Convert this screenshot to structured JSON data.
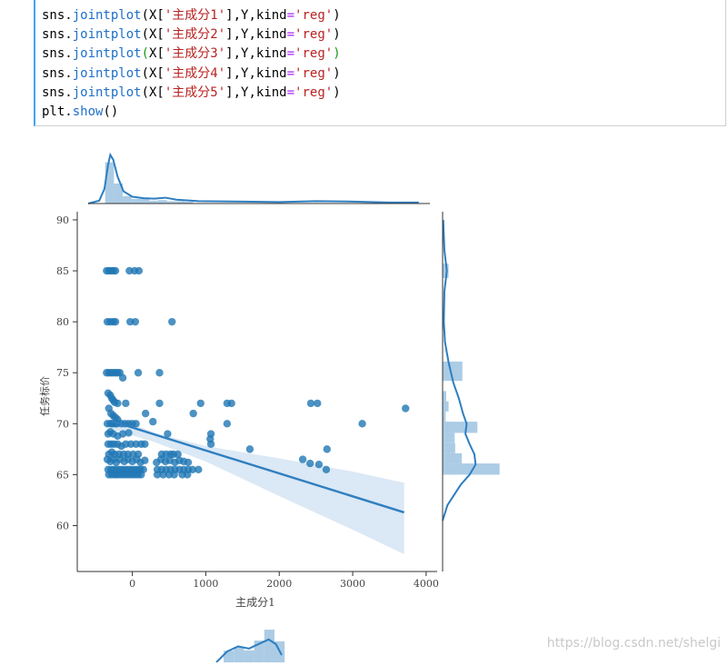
{
  "code": {
    "lines": [
      [
        {
          "t": "sns.",
          "c": ""
        },
        {
          "t": "jointplot",
          "c": "fn"
        },
        {
          "t": "(X[",
          "c": ""
        },
        {
          "t": "'主成分1'",
          "c": "str"
        },
        {
          "t": "],Y,kind",
          "c": ""
        },
        {
          "t": "=",
          "c": "kw"
        },
        {
          "t": "'reg'",
          "c": "str"
        },
        {
          "t": ")",
          "c": ""
        }
      ],
      [
        {
          "t": "sns.",
          "c": ""
        },
        {
          "t": "jointplot",
          "c": "fn"
        },
        {
          "t": "(X[",
          "c": ""
        },
        {
          "t": "'主成分2'",
          "c": "str"
        },
        {
          "t": "],Y,kind",
          "c": ""
        },
        {
          "t": "=",
          "c": "kw"
        },
        {
          "t": "'reg'",
          "c": "str"
        },
        {
          "t": ")",
          "c": ""
        }
      ],
      [
        {
          "t": "sns.",
          "c": ""
        },
        {
          "t": "jointplot",
          "c": "fn"
        },
        {
          "t": "(",
          "c": "par-g"
        },
        {
          "t": "X[",
          "c": ""
        },
        {
          "t": "'主成分3'",
          "c": "str"
        },
        {
          "t": "],Y,kind",
          "c": ""
        },
        {
          "t": "=",
          "c": "kw"
        },
        {
          "t": "'reg'",
          "c": "str"
        },
        {
          "t": ")",
          "c": "par-g"
        }
      ],
      [
        {
          "t": "sns.",
          "c": ""
        },
        {
          "t": "jointplot",
          "c": "fn"
        },
        {
          "t": "(X[",
          "c": ""
        },
        {
          "t": "'主成分4'",
          "c": "str"
        },
        {
          "t": "],Y,kind",
          "c": ""
        },
        {
          "t": "=",
          "c": "kw"
        },
        {
          "t": "'reg'",
          "c": "str"
        },
        {
          "t": ")",
          "c": ""
        }
      ],
      [
        {
          "t": "sns.",
          "c": ""
        },
        {
          "t": "jointplot",
          "c": "fn"
        },
        {
          "t": "(X[",
          "c": ""
        },
        {
          "t": "'主成分5'",
          "c": "str"
        },
        {
          "t": "],Y,kind",
          "c": ""
        },
        {
          "t": "=",
          "c": "kw"
        },
        {
          "t": "'reg'",
          "c": "str"
        },
        {
          "t": ")",
          "c": ""
        }
      ],
      [
        {
          "t": "plt.",
          "c": ""
        },
        {
          "t": "show",
          "c": "fn"
        },
        {
          "t": "()",
          "c": ""
        }
      ]
    ]
  },
  "colors": {
    "cell_accent": "#42a5f5",
    "points": "#1f77b4",
    "reg_line": "#2f7fc0",
    "ci_band": "#c7dbef",
    "hist": "#9ec3e0",
    "kde": "#2e7ec0"
  },
  "chart_data": {
    "type": "scatter",
    "xlabel": "主成分1",
    "ylabel": "任务标价",
    "xlim": [
      -750,
      4150
    ],
    "ylim": [
      55.5,
      90.8
    ],
    "xticks": [
      "0",
      "1000",
      "2000",
      "3000",
      "4000"
    ],
    "yticks": [
      "60",
      "65",
      "70",
      "75",
      "80",
      "85",
      "90"
    ],
    "regression": {
      "x0": -300,
      "y0": 70.3,
      "x1": 3700,
      "y1": 61.3
    },
    "ci": {
      "upper": [
        [
          -300,
          70.9
        ],
        [
          300,
          69.1
        ],
        [
          1000,
          67.8
        ],
        [
          2000,
          66.6
        ],
        [
          3000,
          65.3
        ],
        [
          3700,
          64.2
        ]
      ],
      "lower": [
        [
          3700,
          57.2
        ],
        [
          3000,
          59.6
        ],
        [
          2000,
          62.9
        ],
        [
          1000,
          66.3
        ],
        [
          300,
          68.2
        ],
        [
          -300,
          69.5
        ]
      ]
    },
    "points": [
      [
        -350,
        85
      ],
      [
        -320,
        85
      ],
      [
        -290,
        85
      ],
      [
        -260,
        85
      ],
      [
        -230,
        85
      ],
      [
        -40,
        85
      ],
      [
        30,
        85
      ],
      [
        90,
        85
      ],
      [
        -340,
        80
      ],
      [
        -300,
        80
      ],
      [
        -260,
        80
      ],
      [
        -230,
        80
      ],
      [
        -30,
        80
      ],
      [
        40,
        80
      ],
      [
        540,
        80
      ],
      [
        -350,
        75
      ],
      [
        -320,
        75
      ],
      [
        -290,
        75
      ],
      [
        -260,
        75
      ],
      [
        -230,
        75
      ],
      [
        -200,
        75
      ],
      [
        -170,
        75
      ],
      [
        80,
        75
      ],
      [
        370,
        75
      ],
      [
        -130,
        74.5
      ],
      [
        -330,
        73
      ],
      [
        -300,
        72.8
      ],
      [
        -280,
        72.5
      ],
      [
        -260,
        72.3
      ],
      [
        -240,
        72.1
      ],
      [
        -200,
        72
      ],
      [
        -90,
        72
      ],
      [
        370,
        72
      ],
      [
        930,
        72
      ],
      [
        1290,
        72
      ],
      [
        1350,
        72
      ],
      [
        2430,
        72
      ],
      [
        2520,
        72
      ],
      [
        3720,
        71.5
      ],
      [
        -320,
        71.5
      ],
      [
        -290,
        71
      ],
      [
        -260,
        70.8
      ],
      [
        -230,
        70.6
      ],
      [
        -200,
        70.4
      ],
      [
        830,
        71
      ],
      [
        180,
        71
      ],
      [
        280,
        70.2
      ],
      [
        -340,
        70
      ],
      [
        -300,
        70
      ],
      [
        -270,
        70
      ],
      [
        -240,
        70
      ],
      [
        -210,
        70
      ],
      [
        -150,
        70
      ],
      [
        -100,
        70
      ],
      [
        -50,
        70
      ],
      [
        0,
        70
      ],
      [
        50,
        70
      ],
      [
        1290,
        70
      ],
      [
        3130,
        70
      ],
      [
        -330,
        69
      ],
      [
        -300,
        69.2
      ],
      [
        -260,
        69
      ],
      [
        -200,
        68.8
      ],
      [
        -130,
        69
      ],
      [
        -50,
        69.1
      ],
      [
        480,
        69
      ],
      [
        1070,
        69
      ],
      [
        1060,
        68.5
      ],
      [
        -330,
        68
      ],
      [
        -290,
        68
      ],
      [
        -250,
        68
      ],
      [
        -200,
        68
      ],
      [
        -150,
        67.8
      ],
      [
        -90,
        68
      ],
      [
        -20,
        68
      ],
      [
        50,
        68
      ],
      [
        120,
        68
      ],
      [
        170,
        68
      ],
      [
        1070,
        68
      ],
      [
        -320,
        67
      ],
      [
        -280,
        67.2
      ],
      [
        -240,
        67
      ],
      [
        -180,
        67
      ],
      [
        -120,
        67
      ],
      [
        -60,
        67
      ],
      [
        10,
        67
      ],
      [
        80,
        67
      ],
      [
        400,
        67
      ],
      [
        460,
        67
      ],
      [
        520,
        67
      ],
      [
        560,
        67
      ],
      [
        620,
        67
      ],
      [
        1600,
        67.5
      ],
      [
        2650,
        67.5
      ],
      [
        -340,
        66.5
      ],
      [
        -300,
        66.3
      ],
      [
        -260,
        66.5
      ],
      [
        -220,
        66.2
      ],
      [
        -170,
        66.5
      ],
      [
        -110,
        66.3
      ],
      [
        -60,
        66.5
      ],
      [
        0,
        66.3
      ],
      [
        60,
        66.5
      ],
      [
        110,
        66.2
      ],
      [
        170,
        66.4
      ],
      [
        330,
        66.2
      ],
      [
        390,
        66.5
      ],
      [
        450,
        66.3
      ],
      [
        510,
        66.4
      ],
      [
        580,
        66.2
      ],
      [
        640,
        66.4
      ],
      [
        700,
        66.3
      ],
      [
        760,
        66.2
      ],
      [
        2320,
        66.5
      ],
      [
        2420,
        66.1
      ],
      [
        2540,
        66
      ],
      [
        -330,
        65.5
      ],
      [
        -290,
        65.5
      ],
      [
        -250,
        65.5
      ],
      [
        -210,
        65.5
      ],
      [
        -170,
        65.5
      ],
      [
        -130,
        65.5
      ],
      [
        -90,
        65.5
      ],
      [
        -50,
        65.5
      ],
      [
        -10,
        65.5
      ],
      [
        30,
        65.5
      ],
      [
        70,
        65.5
      ],
      [
        110,
        65.5
      ],
      [
        150,
        65.5
      ],
      [
        340,
        65.5
      ],
      [
        400,
        65.5
      ],
      [
        460,
        65.5
      ],
      [
        520,
        65.5
      ],
      [
        580,
        65.5
      ],
      [
        640,
        65.5
      ],
      [
        700,
        65.5
      ],
      [
        760,
        65.5
      ],
      [
        820,
        65.5
      ],
      [
        900,
        65.5
      ],
      [
        2640,
        65.5
      ],
      [
        -320,
        65
      ],
      [
        -280,
        65
      ],
      [
        -240,
        65
      ],
      [
        -200,
        65
      ],
      [
        -160,
        65
      ],
      [
        -120,
        65
      ],
      [
        -80,
        65
      ],
      [
        -40,
        65
      ],
      [
        0,
        65
      ],
      [
        40,
        65
      ],
      [
        80,
        65
      ],
      [
        120,
        65
      ],
      [
        340,
        65
      ],
      [
        420,
        65
      ],
      [
        500,
        65
      ],
      [
        570,
        65
      ],
      [
        680,
        65
      ],
      [
        750,
        65
      ]
    ]
  },
  "marginals": {
    "top_hist": [
      [
        -370,
        -250,
        0.72
      ],
      [
        -250,
        -130,
        0.35
      ],
      [
        -130,
        -10,
        0.13
      ],
      [
        -10,
        110,
        0.08
      ],
      [
        110,
        230,
        0.08
      ],
      [
        230,
        350,
        0.05
      ],
      [
        350,
        470,
        0.06
      ],
      [
        470,
        590,
        0.04
      ],
      [
        590,
        710,
        0.04
      ],
      [
        710,
        830,
        0.03
      ]
    ],
    "top_kde": [
      [
        -600,
        0
      ],
      [
        -450,
        0.06
      ],
      [
        -380,
        0.3
      ],
      [
        -330,
        0.8
      ],
      [
        -300,
        1.0
      ],
      [
        -260,
        0.9
      ],
      [
        -200,
        0.55
      ],
      [
        -120,
        0.25
      ],
      [
        0,
        0.14
      ],
      [
        150,
        0.11
      ],
      [
        300,
        0.1
      ],
      [
        450,
        0.12
      ],
      [
        600,
        0.08
      ],
      [
        900,
        0.05
      ],
      [
        1500,
        0.04
      ],
      [
        2000,
        0.03
      ],
      [
        2500,
        0.05
      ],
      [
        3000,
        0.04
      ],
      [
        3500,
        0.02
      ],
      [
        3900,
        0.02
      ]
    ],
    "right_hist": [
      [
        84.3,
        85.7,
        0.1
      ],
      [
        79.3,
        80.7,
        0.02
      ],
      [
        74.2,
        76.1,
        0.33
      ],
      [
        72.2,
        73.2,
        0.06
      ],
      [
        71.2,
        72.2,
        0.1
      ],
      [
        70.2,
        71.2,
        0.05
      ],
      [
        69.1,
        70.2,
        0.58
      ],
      [
        68.1,
        69.1,
        0.2
      ],
      [
        67.1,
        68.1,
        0.21
      ],
      [
        66.1,
        67.1,
        0.32
      ],
      [
        65.0,
        66.1,
        0.95
      ]
    ],
    "right_kde": [
      [
        90,
        0.01
      ],
      [
        87,
        0.03
      ],
      [
        85,
        0.07
      ],
      [
        83,
        0.03
      ],
      [
        80,
        0.02
      ],
      [
        78,
        0.04
      ],
      [
        76,
        0.1
      ],
      [
        74,
        0.18
      ],
      [
        72.5,
        0.27
      ],
      [
        71,
        0.34
      ],
      [
        70,
        0.4
      ],
      [
        69,
        0.38
      ],
      [
        68,
        0.45
      ],
      [
        67,
        0.53
      ],
      [
        66,
        0.55
      ],
      [
        65,
        0.45
      ],
      [
        64,
        0.3
      ],
      [
        62,
        0.08
      ],
      [
        60.5,
        0.0
      ]
    ],
    "bottom_hist": [
      [
        -200,
        -60,
        0.32
      ],
      [
        -60,
        80,
        0.42
      ],
      [
        80,
        220,
        0.33
      ],
      [
        220,
        360,
        0.6
      ],
      [
        360,
        500,
        0.9
      ],
      [
        500,
        640,
        0.58
      ]
    ],
    "bottom_kde": [
      [
        -300,
        0.0
      ],
      [
        -150,
        0.3
      ],
      [
        0,
        0.44
      ],
      [
        150,
        0.38
      ],
      [
        300,
        0.52
      ],
      [
        420,
        0.63
      ],
      [
        520,
        0.5
      ],
      [
        600,
        0.2
      ]
    ]
  },
  "watermark": "https://blog.csdn.net/shelgi"
}
